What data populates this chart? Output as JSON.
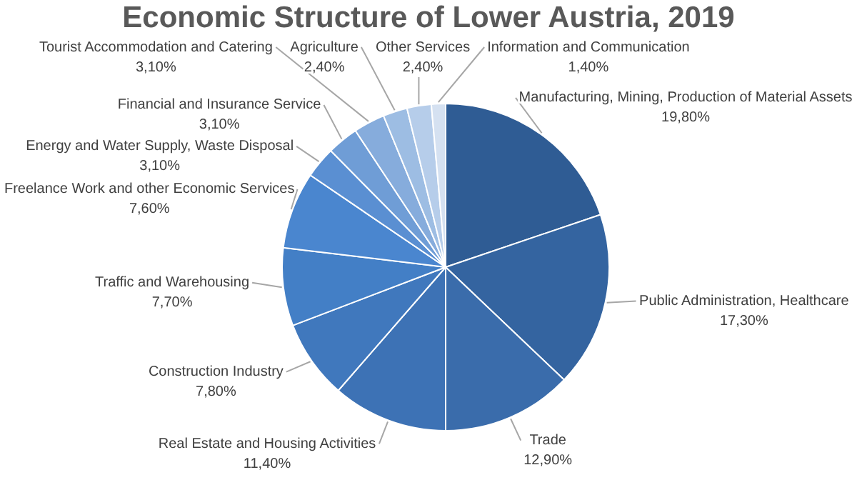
{
  "chart_data": {
    "type": "pie",
    "title": "Economic Structure of Lower Austria, 2019",
    "categories": [
      "Manufacturing, Mining, Production of Material Assets",
      "Public Administration, Healthcare",
      "Trade",
      "Real Estate and Housing Activities",
      "Construction Industry",
      "Traffic and Warehousing",
      "Freelance Work and other Economic Services",
      "Energy and Water Supply, Waste Disposal",
      "Financial and Insurance Service",
      "Tourist Accommodation and Catering",
      "Agriculture",
      "Other Services",
      "Information and Communication"
    ],
    "values": [
      19.8,
      17.3,
      12.9,
      11.4,
      7.8,
      7.7,
      7.6,
      3.1,
      3.1,
      3.1,
      2.4,
      2.4,
      1.4
    ],
    "value_labels": [
      "19,80%",
      "17,30%",
      "12,90%",
      "11,40%",
      "7,80%",
      "7,70%",
      "7,60%",
      "3,10%",
      "3,10%",
      "3,10%",
      "2,40%",
      "2,40%",
      "1,40%"
    ],
    "colors": [
      "#2f5c94",
      "#3464a0",
      "#3a6cab",
      "#3d72b5",
      "#4078bd",
      "#437fc6",
      "#4a86cf",
      "#5a8fd2",
      "#6f9dd6",
      "#86acdc",
      "#9dbde3",
      "#b6cdea",
      "#d5e1f1"
    ]
  }
}
